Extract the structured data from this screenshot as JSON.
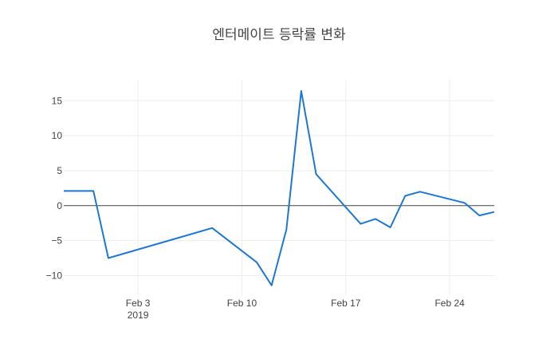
{
  "chart_data": {
    "type": "line",
    "title": "엔터메이트 등락률 변화",
    "xlabel": "",
    "ylabel": "",
    "x_range": [
      "2019-01-29",
      "2019-02-27"
    ],
    "ylim": [
      -12.8,
      18
    ],
    "x_ticks": [
      {
        "date": "2019-02-03",
        "label": "Feb 3",
        "sublabel": "2019"
      },
      {
        "date": "2019-02-10",
        "label": "Feb 10",
        "sublabel": ""
      },
      {
        "date": "2019-02-17",
        "label": "Feb 17",
        "sublabel": ""
      },
      {
        "date": "2019-02-24",
        "label": "Feb 24",
        "sublabel": ""
      }
    ],
    "y_ticks": [
      15,
      10,
      5,
      0,
      -5,
      -10
    ],
    "y_tick_labels": [
      "15",
      "10",
      "5",
      "0",
      "−5",
      "−10"
    ],
    "grid": true,
    "zero_line": true,
    "line_color": "#1f77d4",
    "series": [
      {
        "x": [
          "2019-01-29",
          "2019-01-31",
          "2019-02-01",
          "2019-02-08",
          "2019-02-11",
          "2019-02-12",
          "2019-02-13",
          "2019-02-14",
          "2019-02-15",
          "2019-02-18",
          "2019-02-19",
          "2019-02-20",
          "2019-02-21",
          "2019-02-22",
          "2019-02-25",
          "2019-02-26",
          "2019-02-27"
        ],
        "values": [
          2.1,
          2.1,
          -7.5,
          -3.2,
          -8.1,
          -11.4,
          -3.4,
          16.4,
          4.5,
          -2.6,
          -1.9,
          -3.1,
          1.4,
          2.0,
          0.4,
          -1.4,
          -0.9
        ]
      }
    ]
  }
}
